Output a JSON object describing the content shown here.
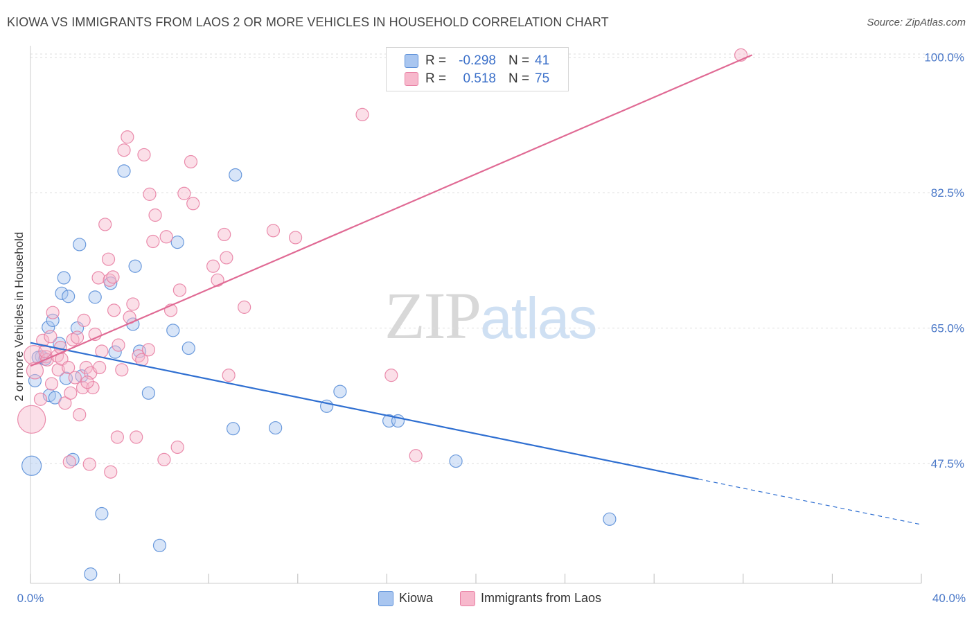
{
  "header": {
    "title": "KIOWA VS IMMIGRANTS FROM LAOS 2 OR MORE VEHICLES IN HOUSEHOLD CORRELATION CHART",
    "source": "Source: ZipAtlas.com"
  },
  "watermark": {
    "zip": "ZIP",
    "atlas": "atlas"
  },
  "legend_top": {
    "rows": [
      {
        "r_label": "R =",
        "r_value": "-0.298",
        "n_label": "N =",
        "n_value": "41",
        "color": "#a9c6f0"
      },
      {
        "r_label": "R =",
        "r_value": "0.518",
        "n_label": "N =",
        "n_value": "75",
        "color": "#f7b8cc"
      }
    ]
  },
  "legend_bottom": {
    "items": [
      {
        "label": "Kiowa",
        "color": "#a9c6f0"
      },
      {
        "label": "Immigrants from Laos",
        "color": "#f7b8cc"
      }
    ]
  },
  "colors": {
    "kiowa_fill": "#a9c6f0",
    "kiowa_stroke": "#5b8fd8",
    "kiowa_line": "#2f6fd1",
    "laos_fill": "#f7b8cc",
    "laos_stroke": "#e87fa3",
    "laos_line": "#e06a94",
    "grid": "#dddddd",
    "tick_text": "#4a78c8"
  },
  "chart_data": {
    "type": "scatter",
    "title": "KIOWA VS IMMIGRANTS FROM LAOS 2 OR MORE VEHICLES IN HOUSEHOLD CORRELATION CHART",
    "xlabel": "",
    "ylabel": "2 or more Vehicles in Household",
    "xlim": [
      0,
      40
    ],
    "ylim": [
      32,
      101.5
    ],
    "x_tick_labels": [
      "0.0%",
      "40.0%"
    ],
    "y_ticks": [
      47.5,
      65.0,
      82.5,
      100.0
    ],
    "y_tick_labels": [
      "47.5%",
      "65.0%",
      "82.5%",
      "100.0%"
    ],
    "grid": true,
    "legend_position": "top-center",
    "series": [
      {
        "name": "Kiowa",
        "r": -0.298,
        "n": 41,
        "points": [
          {
            "x": 0.05,
            "y": 47.2,
            "s": 14
          },
          {
            "x": 0.2,
            "y": 58.2,
            "s": 9
          },
          {
            "x": 0.5,
            "y": 61.3,
            "s": 9
          },
          {
            "x": 0.65,
            "y": 61.0,
            "s": 9
          },
          {
            "x": 0.8,
            "y": 65.1,
            "s": 9
          },
          {
            "x": 0.85,
            "y": 56.3,
            "s": 9
          },
          {
            "x": 1.0,
            "y": 66.0,
            "s": 9
          },
          {
            "x": 1.1,
            "y": 56.0,
            "s": 9
          },
          {
            "x": 1.3,
            "y": 63.0,
            "s": 9
          },
          {
            "x": 1.4,
            "y": 69.5,
            "s": 9
          },
          {
            "x": 1.5,
            "y": 71.5,
            "s": 9
          },
          {
            "x": 1.7,
            "y": 69.1,
            "s": 9
          },
          {
            "x": 1.6,
            "y": 58.5,
            "s": 9
          },
          {
            "x": 1.9,
            "y": 48.0,
            "s": 9
          },
          {
            "x": 2.1,
            "y": 65.0,
            "s": 9
          },
          {
            "x": 2.2,
            "y": 75.8,
            "s": 9
          },
          {
            "x": 2.3,
            "y": 58.8,
            "s": 9
          },
          {
            "x": 2.7,
            "y": 33.2,
            "s": 9
          },
          {
            "x": 2.9,
            "y": 69.0,
            "s": 9
          },
          {
            "x": 3.2,
            "y": 41.0,
            "s": 9
          },
          {
            "x": 3.6,
            "y": 70.8,
            "s": 9
          },
          {
            "x": 3.8,
            "y": 61.9,
            "s": 9
          },
          {
            "x": 4.2,
            "y": 85.3,
            "s": 9
          },
          {
            "x": 4.7,
            "y": 73.0,
            "s": 9
          },
          {
            "x": 4.6,
            "y": 65.5,
            "s": 9
          },
          {
            "x": 4.9,
            "y": 62.0,
            "s": 9
          },
          {
            "x": 5.3,
            "y": 56.6,
            "s": 9
          },
          {
            "x": 5.8,
            "y": 36.9,
            "s": 9
          },
          {
            "x": 6.4,
            "y": 64.7,
            "s": 9
          },
          {
            "x": 6.6,
            "y": 76.1,
            "s": 9
          },
          {
            "x": 7.1,
            "y": 62.4,
            "s": 9
          },
          {
            "x": 9.1,
            "y": 52.0,
            "s": 9
          },
          {
            "x": 9.2,
            "y": 84.8,
            "s": 9
          },
          {
            "x": 11.0,
            "y": 52.1,
            "s": 9
          },
          {
            "x": 13.3,
            "y": 54.9,
            "s": 9
          },
          {
            "x": 13.9,
            "y": 56.8,
            "s": 9
          },
          {
            "x": 16.1,
            "y": 53.0,
            "s": 9
          },
          {
            "x": 16.5,
            "y": 53.0,
            "s": 9
          },
          {
            "x": 19.1,
            "y": 47.8,
            "s": 9
          },
          {
            "x": 26.0,
            "y": 40.3,
            "s": 9
          },
          {
            "x": 0.35,
            "y": 61.2,
            "s": 9
          }
        ],
        "trend": {
          "x0": 0,
          "y0": 63.1,
          "x1": 40,
          "y1": 39.6,
          "solid_until_x": 30.0
        }
      },
      {
        "name": "Immigrants from Laos",
        "r": 0.518,
        "n": 75,
        "points": [
          {
            "x": 0.05,
            "y": 53.2,
            "s": 20
          },
          {
            "x": 0.15,
            "y": 61.5,
            "s": 14
          },
          {
            "x": 0.2,
            "y": 59.5,
            "s": 12
          },
          {
            "x": 0.45,
            "y": 55.8,
            "s": 9
          },
          {
            "x": 0.55,
            "y": 63.4,
            "s": 9
          },
          {
            "x": 0.7,
            "y": 61.3,
            "s": 9
          },
          {
            "x": 0.75,
            "y": 60.9,
            "s": 9
          },
          {
            "x": 0.9,
            "y": 63.9,
            "s": 9
          },
          {
            "x": 0.95,
            "y": 57.8,
            "s": 9
          },
          {
            "x": 1.0,
            "y": 67.0,
            "s": 9
          },
          {
            "x": 1.2,
            "y": 61.4,
            "s": 9
          },
          {
            "x": 1.25,
            "y": 59.6,
            "s": 9
          },
          {
            "x": 1.4,
            "y": 61.0,
            "s": 9
          },
          {
            "x": 1.55,
            "y": 55.3,
            "s": 9
          },
          {
            "x": 1.7,
            "y": 59.9,
            "s": 9
          },
          {
            "x": 1.75,
            "y": 47.7,
            "s": 9
          },
          {
            "x": 1.8,
            "y": 56.6,
            "s": 9
          },
          {
            "x": 1.9,
            "y": 63.5,
            "s": 9
          },
          {
            "x": 2.1,
            "y": 63.8,
            "s": 9
          },
          {
            "x": 2.2,
            "y": 53.8,
            "s": 9
          },
          {
            "x": 2.35,
            "y": 57.3,
            "s": 9
          },
          {
            "x": 2.4,
            "y": 66.0,
            "s": 9
          },
          {
            "x": 2.5,
            "y": 59.9,
            "s": 9
          },
          {
            "x": 2.65,
            "y": 47.4,
            "s": 9
          },
          {
            "x": 2.7,
            "y": 59.2,
            "s": 9
          },
          {
            "x": 2.8,
            "y": 57.3,
            "s": 9
          },
          {
            "x": 2.9,
            "y": 64.2,
            "s": 9
          },
          {
            "x": 3.05,
            "y": 71.5,
            "s": 9
          },
          {
            "x": 3.1,
            "y": 59.9,
            "s": 9
          },
          {
            "x": 3.2,
            "y": 62.0,
            "s": 9
          },
          {
            "x": 3.35,
            "y": 78.4,
            "s": 9
          },
          {
            "x": 3.5,
            "y": 73.9,
            "s": 9
          },
          {
            "x": 3.55,
            "y": 71.2,
            "s": 9
          },
          {
            "x": 3.6,
            "y": 46.4,
            "s": 9
          },
          {
            "x": 3.7,
            "y": 71.6,
            "s": 9
          },
          {
            "x": 3.75,
            "y": 67.3,
            "s": 9
          },
          {
            "x": 3.95,
            "y": 62.8,
            "s": 9
          },
          {
            "x": 3.9,
            "y": 50.9,
            "s": 9
          },
          {
            "x": 4.1,
            "y": 59.6,
            "s": 9
          },
          {
            "x": 4.2,
            "y": 88.0,
            "s": 9
          },
          {
            "x": 4.35,
            "y": 89.7,
            "s": 9
          },
          {
            "x": 4.6,
            "y": 68.1,
            "s": 9
          },
          {
            "x": 4.75,
            "y": 50.9,
            "s": 9
          },
          {
            "x": 4.85,
            "y": 61.4,
            "s": 9
          },
          {
            "x": 5.0,
            "y": 60.9,
            "s": 9
          },
          {
            "x": 5.1,
            "y": 87.4,
            "s": 9
          },
          {
            "x": 5.3,
            "y": 62.2,
            "s": 9
          },
          {
            "x": 5.35,
            "y": 82.3,
            "s": 9
          },
          {
            "x": 5.5,
            "y": 76.2,
            "s": 9
          },
          {
            "x": 5.6,
            "y": 79.6,
            "s": 9
          },
          {
            "x": 6.0,
            "y": 48.0,
            "s": 9
          },
          {
            "x": 6.1,
            "y": 76.8,
            "s": 9
          },
          {
            "x": 6.3,
            "y": 67.3,
            "s": 9
          },
          {
            "x": 6.6,
            "y": 49.6,
            "s": 9
          },
          {
            "x": 6.7,
            "y": 69.9,
            "s": 9
          },
          {
            "x": 6.9,
            "y": 82.4,
            "s": 9
          },
          {
            "x": 7.2,
            "y": 86.5,
            "s": 9
          },
          {
            "x": 7.3,
            "y": 81.1,
            "s": 9
          },
          {
            "x": 8.2,
            "y": 73.0,
            "s": 9
          },
          {
            "x": 8.4,
            "y": 71.2,
            "s": 9
          },
          {
            "x": 8.7,
            "y": 77.1,
            "s": 9
          },
          {
            "x": 8.8,
            "y": 74.1,
            "s": 9
          },
          {
            "x": 8.9,
            "y": 58.9,
            "s": 9
          },
          {
            "x": 9.6,
            "y": 67.7,
            "s": 9
          },
          {
            "x": 10.9,
            "y": 77.6,
            "s": 9
          },
          {
            "x": 11.9,
            "y": 76.7,
            "s": 9
          },
          {
            "x": 14.9,
            "y": 92.6,
            "s": 9
          },
          {
            "x": 16.2,
            "y": 58.9,
            "s": 9
          },
          {
            "x": 17.3,
            "y": 48.5,
            "s": 9
          },
          {
            "x": 31.9,
            "y": 100.3,
            "s": 9
          },
          {
            "x": 2.0,
            "y": 58.6,
            "s": 9
          },
          {
            "x": 1.35,
            "y": 62.5,
            "s": 9
          },
          {
            "x": 0.65,
            "y": 62.0,
            "s": 9
          },
          {
            "x": 2.55,
            "y": 58.0,
            "s": 9
          },
          {
            "x": 4.45,
            "y": 66.4,
            "s": 9
          }
        ],
        "trend": {
          "x0": 0,
          "y0": 60.1,
          "x1": 32.4,
          "y1": 100.3,
          "solid_until_x": 32.4
        }
      }
    ]
  }
}
